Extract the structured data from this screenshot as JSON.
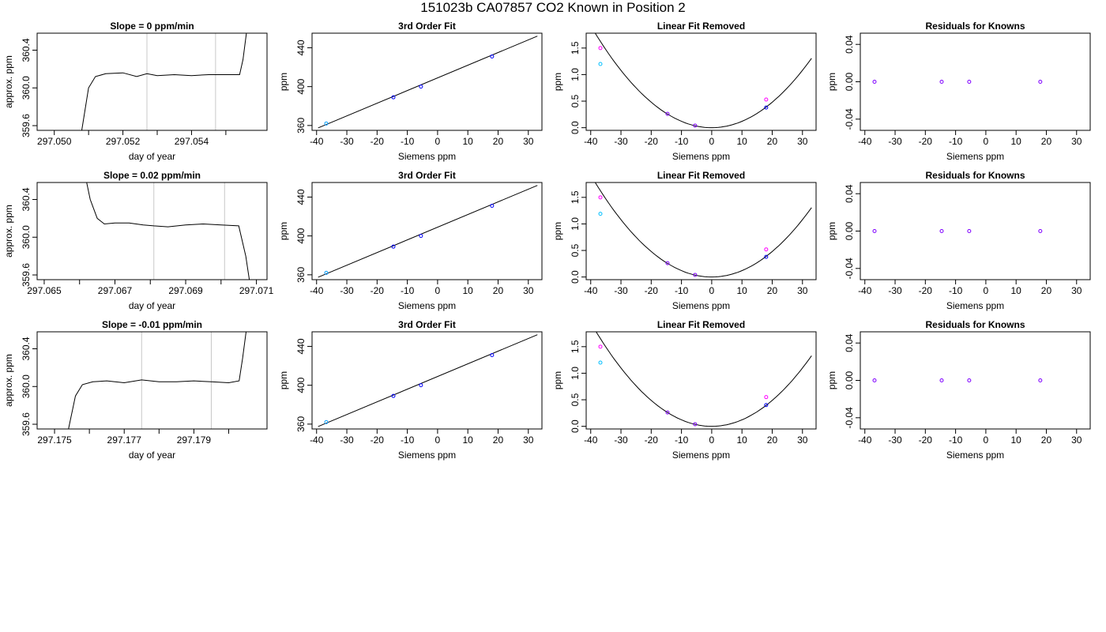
{
  "page_title": "151023b     CA07857   CO2 Known in Position  2",
  "colors": {
    "line": "#000000",
    "grid_vline": "#c8c8c8",
    "pt_blue": "#0000ff",
    "pt_cyan": "#00bfff",
    "pt_magenta": "#ff00ff",
    "pt_purple": "#7f00ff"
  },
  "chart_data": [
    {
      "type": "line",
      "row": 1,
      "col": 1,
      "title": "Slope =  0  ppm/min",
      "xlabel": "day of year",
      "ylabel": "approx. ppm",
      "xlim": [
        297.0495,
        297.0562
      ],
      "ylim": [
        359.55,
        360.58
      ],
      "x_ticks": [
        297.05,
        297.051,
        297.052,
        297.053,
        297.054,
        297.055
      ],
      "x_tick_labels": [
        "297.050",
        "",
        "297.052",
        "",
        "297.054",
        ""
      ],
      "y_ticks": [
        359.6,
        360.0,
        360.4
      ],
      "y_tick_labels": [
        "359.6",
        "360.0",
        "360.4"
      ],
      "vlines": [
        297.0527,
        297.0547
      ],
      "series": [
        {
          "x": [
            297.0508,
            297.051,
            297.0512,
            297.0515,
            297.052,
            297.0524,
            297.0527,
            297.053,
            297.0535,
            297.054,
            297.0545,
            297.055,
            297.0554,
            297.0555,
            297.0556
          ],
          "y": [
            359.55,
            360.0,
            360.12,
            360.15,
            360.16,
            360.12,
            360.15,
            360.13,
            360.14,
            360.13,
            360.14,
            360.14,
            360.14,
            360.3,
            360.58
          ]
        }
      ]
    },
    {
      "type": "scatter",
      "row": 1,
      "col": 2,
      "title": "3rd Order Fit",
      "xlabel": "Siemens ppm",
      "ylabel": "ppm",
      "xlim": [
        -41.5,
        34.5
      ],
      "ylim": [
        355,
        455
      ],
      "x_ticks": [
        -40,
        -30,
        -20,
        -10,
        0,
        10,
        20,
        30
      ],
      "x_tick_labels": [
        "-40",
        "-30",
        "-20",
        "-10",
        "0",
        "10",
        "20",
        "30"
      ],
      "y_ticks": [
        360,
        400,
        440
      ],
      "y_tick_labels": [
        "360",
        "400",
        "440"
      ],
      "curve": {
        "x": [
          -39.5,
          33
        ],
        "y": [
          357.5,
          452
        ]
      },
      "points": [
        {
          "x": -36.8,
          "y": 362,
          "color": "#ff00ff"
        },
        {
          "x": -36.8,
          "y": 362,
          "color": "#00bfff"
        },
        {
          "x": -14.6,
          "y": 389,
          "color": "#0000ff"
        },
        {
          "x": -5.5,
          "y": 400,
          "color": "#0000ff"
        },
        {
          "x": 18,
          "y": 431,
          "color": "#0000ff"
        }
      ]
    },
    {
      "type": "scatter",
      "row": 1,
      "col": 3,
      "title": "Linear Fit Removed",
      "xlabel": "Siemens ppm",
      "ylabel": "ppm",
      "xlim": [
        -41.5,
        34.5
      ],
      "ylim": [
        -0.05,
        1.78
      ],
      "x_ticks": [
        -40,
        -30,
        -20,
        -10,
        0,
        10,
        20,
        30
      ],
      "x_tick_labels": [
        "-40",
        "-30",
        "-20",
        "-10",
        "0",
        "10",
        "20",
        "30"
      ],
      "y_ticks": [
        0.0,
        0.5,
        1.0,
        1.5
      ],
      "y_tick_labels": [
        "0.0",
        "0.5",
        "1.0",
        "1.5"
      ],
      "parabola": {
        "a": 0.0012,
        "xmin": -39.5,
        "xmax": 33
      },
      "points": [
        {
          "x": -36.8,
          "y": 1.5,
          "color": "#ff00ff"
        },
        {
          "x": -36.8,
          "y": 1.2,
          "color": "#00bfff"
        },
        {
          "x": -14.6,
          "y": 0.26,
          "color": "#7f00ff"
        },
        {
          "x": -5.5,
          "y": 0.04,
          "color": "#7f00ff"
        },
        {
          "x": 18,
          "y": 0.38,
          "color": "#0000ff"
        },
        {
          "x": 18,
          "y": 0.53,
          "color": "#ff00ff"
        }
      ]
    },
    {
      "type": "scatter",
      "row": 1,
      "col": 4,
      "title": "Residuals for Knowns",
      "xlabel": "Siemens ppm",
      "ylabel": "ppm",
      "xlim": [
        -41.5,
        34.5
      ],
      "ylim": [
        -0.052,
        0.052
      ],
      "x_ticks": [
        -40,
        -30,
        -20,
        -10,
        0,
        10,
        20,
        30
      ],
      "x_tick_labels": [
        "-40",
        "-30",
        "-20",
        "-10",
        "0",
        "10",
        "20",
        "30"
      ],
      "y_ticks": [
        -0.04,
        0.0,
        0.04
      ],
      "y_tick_labels": [
        "-0.04",
        "0.00",
        "0.04"
      ],
      "points": [
        {
          "x": -36.8,
          "y": 0,
          "color": "#7f00ff"
        },
        {
          "x": -14.6,
          "y": 0,
          "color": "#7f00ff"
        },
        {
          "x": -5.5,
          "y": 0,
          "color": "#7f00ff"
        },
        {
          "x": 18,
          "y": 0,
          "color": "#7f00ff"
        }
      ]
    },
    {
      "type": "line",
      "row": 2,
      "col": 1,
      "title": "Slope =  0.02  ppm/min",
      "xlabel": "day of year",
      "ylabel": "approx. ppm",
      "xlim": [
        297.0648,
        297.0713
      ],
      "ylim": [
        359.55,
        360.58
      ],
      "x_ticks": [
        297.065,
        297.066,
        297.067,
        297.068,
        297.069,
        297.07,
        297.071
      ],
      "x_tick_labels": [
        "297.065",
        "",
        "297.067",
        "",
        "297.069",
        "",
        "297.071"
      ],
      "y_ticks": [
        359.6,
        360.0,
        360.4
      ],
      "y_tick_labels": [
        "359.6",
        "360.0",
        "360.4"
      ],
      "vlines": [
        297.0681,
        297.0701
      ],
      "series": [
        {
          "x": [
            297.0662,
            297.0663,
            297.0665,
            297.0667,
            297.067,
            297.0674,
            297.0678,
            297.0681,
            297.0685,
            297.069,
            297.0695,
            297.07,
            297.0705,
            297.0707,
            297.0708
          ],
          "y": [
            360.58,
            360.4,
            360.2,
            360.14,
            360.15,
            360.15,
            360.13,
            360.12,
            360.11,
            360.13,
            360.14,
            360.13,
            360.12,
            359.8,
            359.55
          ]
        }
      ]
    },
    {
      "type": "scatter",
      "row": 2,
      "col": 2,
      "title": "3rd Order Fit",
      "xlabel": "Siemens ppm",
      "ylabel": "ppm",
      "xlim": [
        -41.5,
        34.5
      ],
      "ylim": [
        355,
        455
      ],
      "x_ticks": [
        -40,
        -30,
        -20,
        -10,
        0,
        10,
        20,
        30
      ],
      "x_tick_labels": [
        "-40",
        "-30",
        "-20",
        "-10",
        "0",
        "10",
        "20",
        "30"
      ],
      "y_ticks": [
        360,
        400,
        440
      ],
      "y_tick_labels": [
        "360",
        "400",
        "440"
      ],
      "curve": {
        "x": [
          -39.5,
          33
        ],
        "y": [
          357.5,
          452
        ]
      },
      "points": [
        {
          "x": -36.8,
          "y": 362,
          "color": "#ff00ff"
        },
        {
          "x": -36.8,
          "y": 362,
          "color": "#00bfff"
        },
        {
          "x": -14.6,
          "y": 389,
          "color": "#0000ff"
        },
        {
          "x": -5.5,
          "y": 400,
          "color": "#0000ff"
        },
        {
          "x": 18,
          "y": 431,
          "color": "#0000ff"
        }
      ]
    },
    {
      "type": "scatter",
      "row": 2,
      "col": 3,
      "title": "Linear Fit Removed",
      "xlabel": "Siemens ppm",
      "ylabel": "ppm",
      "xlim": [
        -41.5,
        34.5
      ],
      "ylim": [
        -0.05,
        1.78
      ],
      "x_ticks": [
        -40,
        -30,
        -20,
        -10,
        0,
        10,
        20,
        30
      ],
      "x_tick_labels": [
        "-40",
        "-30",
        "-20",
        "-10",
        "0",
        "10",
        "20",
        "30"
      ],
      "y_ticks": [
        0.0,
        0.5,
        1.0,
        1.5
      ],
      "y_tick_labels": [
        "0.0",
        "0.5",
        "1.0",
        "1.5"
      ],
      "parabola": {
        "a": 0.0012,
        "xmin": -39.5,
        "xmax": 33
      },
      "points": [
        {
          "x": -36.8,
          "y": 1.5,
          "color": "#ff00ff"
        },
        {
          "x": -36.8,
          "y": 1.19,
          "color": "#00bfff"
        },
        {
          "x": -14.6,
          "y": 0.26,
          "color": "#7f00ff"
        },
        {
          "x": -5.5,
          "y": 0.04,
          "color": "#7f00ff"
        },
        {
          "x": 18,
          "y": 0.38,
          "color": "#0000ff"
        },
        {
          "x": 18,
          "y": 0.52,
          "color": "#ff00ff"
        }
      ]
    },
    {
      "type": "scatter",
      "row": 2,
      "col": 4,
      "title": "Residuals for Knowns",
      "xlabel": "Siemens ppm",
      "ylabel": "ppm",
      "xlim": [
        -41.5,
        34.5
      ],
      "ylim": [
        -0.052,
        0.052
      ],
      "x_ticks": [
        -40,
        -30,
        -20,
        -10,
        0,
        10,
        20,
        30
      ],
      "x_tick_labels": [
        "-40",
        "-30",
        "-20",
        "-10",
        "0",
        "10",
        "20",
        "30"
      ],
      "y_ticks": [
        -0.04,
        0.0,
        0.04
      ],
      "y_tick_labels": [
        "-0.04",
        "0.00",
        "0.04"
      ],
      "points": [
        {
          "x": -36.8,
          "y": 0,
          "color": "#7f00ff"
        },
        {
          "x": -14.6,
          "y": 0,
          "color": "#7f00ff"
        },
        {
          "x": -5.5,
          "y": 0,
          "color": "#7f00ff"
        },
        {
          "x": 18,
          "y": 0,
          "color": "#7f00ff"
        }
      ]
    },
    {
      "type": "line",
      "row": 3,
      "col": 1,
      "title": "Slope =  -0.01  ppm/min",
      "xlabel": "day of year",
      "ylabel": "approx. ppm",
      "xlim": [
        297.1745,
        297.1811
      ],
      "ylim": [
        359.55,
        360.58
      ],
      "x_ticks": [
        297.175,
        297.176,
        297.177,
        297.178,
        297.179,
        297.18
      ],
      "x_tick_labels": [
        "297.175",
        "",
        "297.177",
        "",
        "297.179",
        ""
      ],
      "y_ticks": [
        359.6,
        360.0,
        360.4
      ],
      "y_tick_labels": [
        "359.6",
        "360.0",
        "360.4"
      ],
      "vlines": [
        297.1775,
        297.1795
      ],
      "series": [
        {
          "x": [
            297.1754,
            297.1756,
            297.1758,
            297.1761,
            297.1765,
            297.177,
            297.1775,
            297.178,
            297.1785,
            297.179,
            297.1795,
            297.18,
            297.1803,
            297.1804,
            297.1805
          ],
          "y": [
            359.55,
            359.9,
            360.02,
            360.05,
            360.06,
            360.04,
            360.07,
            360.05,
            360.05,
            360.06,
            360.05,
            360.04,
            360.06,
            360.3,
            360.58
          ]
        }
      ]
    },
    {
      "type": "scatter",
      "row": 3,
      "col": 2,
      "title": "3rd Order Fit",
      "xlabel": "Siemens ppm",
      "ylabel": "ppm",
      "xlim": [
        -41.5,
        34.5
      ],
      "ylim": [
        355,
        455
      ],
      "x_ticks": [
        -40,
        -30,
        -20,
        -10,
        0,
        10,
        20,
        30
      ],
      "x_tick_labels": [
        "-40",
        "-30",
        "-20",
        "-10",
        "0",
        "10",
        "20",
        "30"
      ],
      "y_ticks": [
        360,
        400,
        440
      ],
      "y_tick_labels": [
        "360",
        "400",
        "440"
      ],
      "curve": {
        "x": [
          -39.5,
          33
        ],
        "y": [
          357.5,
          452
        ]
      },
      "points": [
        {
          "x": -36.8,
          "y": 362,
          "color": "#ff00ff"
        },
        {
          "x": -36.8,
          "y": 362,
          "color": "#00bfff"
        },
        {
          "x": -14.6,
          "y": 389,
          "color": "#0000ff"
        },
        {
          "x": -5.5,
          "y": 400,
          "color": "#0000ff"
        },
        {
          "x": 18,
          "y": 431,
          "color": "#0000ff"
        }
      ]
    },
    {
      "type": "scatter",
      "row": 3,
      "col": 3,
      "title": "Linear Fit Removed",
      "xlabel": "Siemens ppm",
      "ylabel": "ppm",
      "xlim": [
        -41.5,
        34.5
      ],
      "ylim": [
        -0.05,
        1.78
      ],
      "x_ticks": [
        -40,
        -30,
        -20,
        -10,
        0,
        10,
        20,
        30
      ],
      "x_tick_labels": [
        "-40",
        "-30",
        "-20",
        "-10",
        "0",
        "10",
        "20",
        "30"
      ],
      "y_ticks": [
        0.0,
        0.5,
        1.0,
        1.5
      ],
      "y_tick_labels": [
        "0.0",
        "0.5",
        "1.0",
        "1.5"
      ],
      "parabola": {
        "a": 0.00122,
        "xmin": -39.5,
        "xmax": 33
      },
      "points": [
        {
          "x": -36.8,
          "y": 1.5,
          "color": "#ff00ff"
        },
        {
          "x": -36.8,
          "y": 1.2,
          "color": "#00bfff"
        },
        {
          "x": -14.6,
          "y": 0.26,
          "color": "#7f00ff"
        },
        {
          "x": -5.5,
          "y": 0.04,
          "color": "#7f00ff"
        },
        {
          "x": 18,
          "y": 0.4,
          "color": "#0000ff"
        },
        {
          "x": 18,
          "y": 0.55,
          "color": "#ff00ff"
        }
      ]
    },
    {
      "type": "scatter",
      "row": 3,
      "col": 4,
      "title": "Residuals for Knowns",
      "xlabel": "Siemens ppm",
      "ylabel": "ppm",
      "xlim": [
        -41.5,
        34.5
      ],
      "ylim": [
        -0.052,
        0.052
      ],
      "x_ticks": [
        -40,
        -30,
        -20,
        -10,
        0,
        10,
        20,
        30
      ],
      "x_tick_labels": [
        "-40",
        "-30",
        "-20",
        "-10",
        "0",
        "10",
        "20",
        "30"
      ],
      "y_ticks": [
        -0.04,
        0.0,
        0.04
      ],
      "y_tick_labels": [
        "-0.04",
        "0.00",
        "0.04"
      ],
      "points": [
        {
          "x": -36.8,
          "y": 0,
          "color": "#7f00ff"
        },
        {
          "x": -14.6,
          "y": 0,
          "color": "#7f00ff"
        },
        {
          "x": -5.5,
          "y": 0,
          "color": "#7f00ff"
        },
        {
          "x": 18,
          "y": 0,
          "color": "#7f00ff"
        }
      ]
    }
  ]
}
